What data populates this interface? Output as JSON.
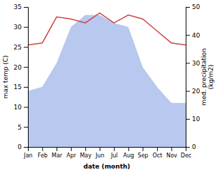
{
  "chart_data": {
    "type": "line",
    "categories": [
      "Jan",
      "Feb",
      "Mar",
      "Apr",
      "May",
      "Jun",
      "Jul",
      "Aug",
      "Sep",
      "Oct",
      "Nov",
      "Dec"
    ],
    "series": [
      {
        "type": "area",
        "color": "#b8c8ee",
        "values": [
          14,
          15,
          21,
          30,
          33,
          33,
          31,
          30,
          20,
          15,
          11,
          11
        ]
      },
      {
        "type": "line",
        "color": "#cc4444",
        "values": [
          25.5,
          26.0,
          32.5,
          32.0,
          31.0,
          33.5,
          31.0,
          33.0,
          32.0,
          29.0,
          26.0,
          25.5
        ]
      }
    ],
    "ylim": [
      0,
      35
    ],
    "yticks": [
      0,
      5,
      10,
      15,
      20,
      25,
      30,
      35
    ],
    "y2lim": [
      0,
      50
    ],
    "y2ticks": [
      0,
      10,
      20,
      30,
      40,
      50
    ],
    "xlabel": "date (month)",
    "ylabel": "max temp (C)",
    "y2label": "med. precipitation\n(kg/m2)"
  }
}
